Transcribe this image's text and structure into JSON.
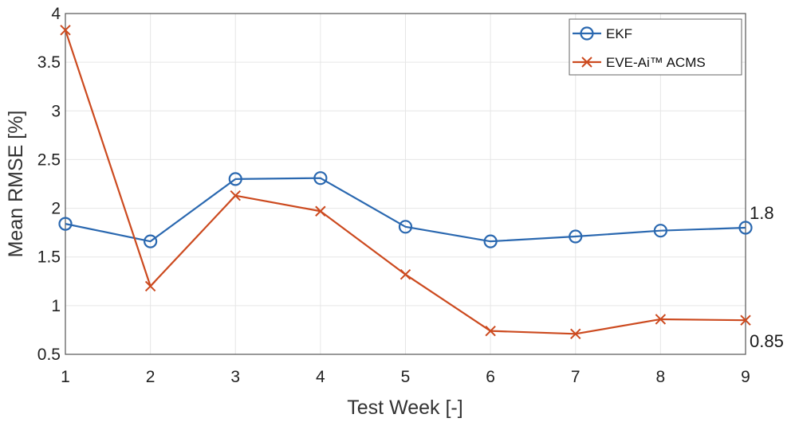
{
  "chart_data": {
    "type": "line",
    "xlabel": "Test Week [-]",
    "ylabel": "Mean RMSE [%]",
    "xlim": [
      1,
      9
    ],
    "ylim": [
      0.5,
      4
    ],
    "x": [
      1,
      2,
      3,
      4,
      5,
      6,
      7,
      8,
      9
    ],
    "x_ticks": [
      "1",
      "2",
      "3",
      "4",
      "5",
      "6",
      "7",
      "8",
      "9"
    ],
    "y_ticks": [
      "0.5",
      "1",
      "1.5",
      "2",
      "2.5",
      "3",
      "3.5",
      "4"
    ],
    "grid": true,
    "legend_position": "top-right",
    "series": [
      {
        "name": "EKF",
        "color": "#2a68b0",
        "marker": "circle",
        "values": [
          1.84,
          1.66,
          2.3,
          2.31,
          1.81,
          1.66,
          1.71,
          1.77,
          1.8
        ]
      },
      {
        "name": "EVE-Ai™ ACMS",
        "color": "#cc4a1f",
        "marker": "x",
        "values": [
          3.83,
          1.2,
          2.13,
          1.97,
          1.32,
          0.74,
          0.71,
          0.86,
          0.85
        ]
      }
    ],
    "annotations": [
      "1.8",
      "0.85"
    ]
  }
}
